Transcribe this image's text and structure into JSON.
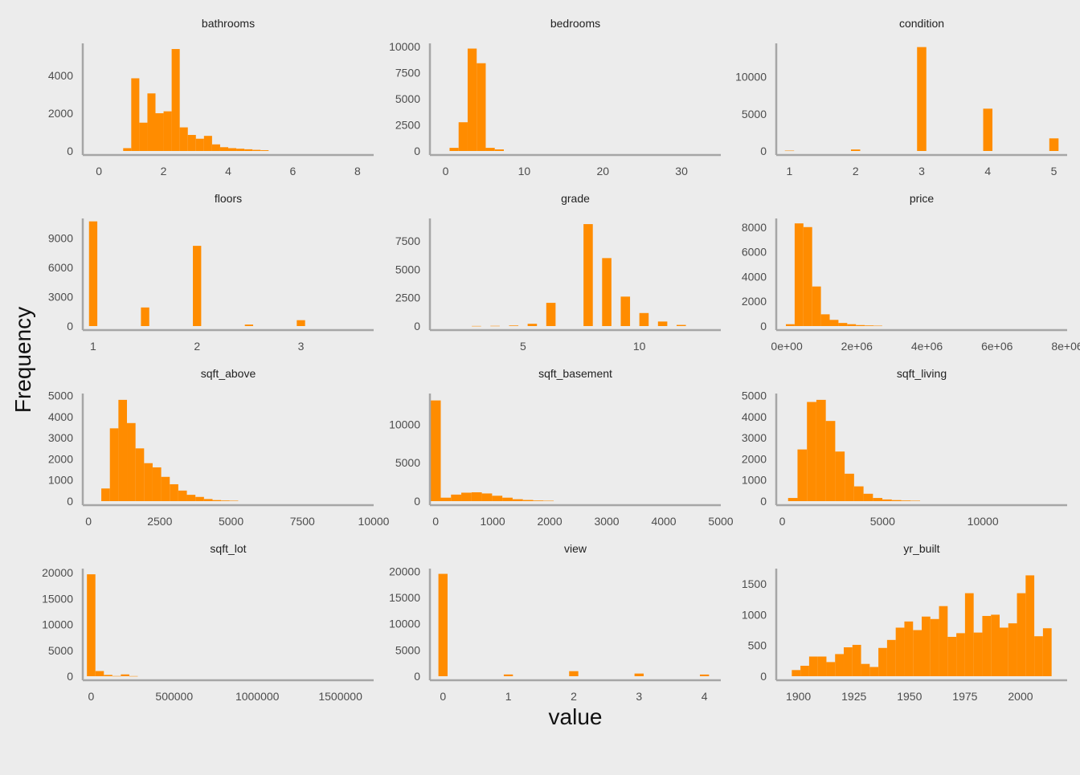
{
  "figure": {
    "xlabel": "value",
    "ylabel": "Frequency",
    "bar_color": "#ff8c00",
    "axis_color": "#a6a6a6",
    "text_color": "#4d4d4d",
    "background": "#ececec"
  },
  "chart_data": [
    {
      "type": "bar",
      "title": "bathrooms",
      "xlim": [
        -0.5,
        8.5
      ],
      "ylim": [
        0,
        5700
      ],
      "xticks": [
        0,
        2,
        4,
        6,
        8
      ],
      "yticks": [
        0,
        2000,
        4000
      ],
      "bin_start": 0.75,
      "bin_width": 0.25,
      "values": [
        150,
        3850,
        1500,
        3050,
        2000,
        2100,
        5400,
        1250,
        850,
        650,
        800,
        350,
        200,
        150,
        120,
        90,
        60,
        40
      ]
    },
    {
      "type": "bar",
      "title": "bedrooms",
      "xlim": [
        -2,
        35
      ],
      "ylim": [
        0,
        10300
      ],
      "xticks": [
        0,
        10,
        20,
        30
      ],
      "yticks": [
        0,
        2500,
        5000,
        7500,
        10000
      ],
      "bin_start": 0.5,
      "bin_width": 1.15,
      "values": [
        300,
        2750,
        9800,
        8400,
        300,
        150
      ]
    },
    {
      "type": "bar",
      "title": "condition",
      "xlim": [
        0.8,
        5.2
      ],
      "ylim": [
        0,
        14500
      ],
      "xticks": [
        1,
        2,
        3,
        4,
        5
      ],
      "yticks": [
        0,
        5000,
        10000
      ],
      "bin_start": 0.93,
      "bin_width": 0.14,
      "bin_step": 1,
      "values": [
        50,
        200,
        14000,
        5700,
        1700
      ]
    },
    {
      "type": "bar",
      "title": "floors",
      "xlim": [
        0.9,
        3.7
      ],
      "ylim": [
        0,
        11000
      ],
      "xticks": [
        1,
        2,
        3
      ],
      "yticks": [
        0,
        3000,
        6000,
        9000
      ],
      "bin_start": 0.96,
      "bin_width": 0.08,
      "bin_step": 0.5,
      "values": [
        10700,
        1900,
        8200,
        150,
        600
      ]
    },
    {
      "type": "bar",
      "title": "grade",
      "xlim": [
        1,
        13.5
      ],
      "ylim": [
        0,
        9500
      ],
      "xticks": [
        5,
        10
      ],
      "yticks": [
        0,
        2500,
        5000,
        7500
      ],
      "bin_start": 2.8,
      "bin_width": 0.4,
      "bin_step": 0.8,
      "values": [
        10,
        20,
        50,
        200,
        2050,
        0,
        9000,
        6000,
        2600,
        1150,
        400,
        100
      ]
    },
    {
      "type": "bar",
      "title": "price",
      "xlim": [
        -300000,
        8000000
      ],
      "ylim": [
        0,
        8700
      ],
      "xticks": [
        0,
        2000000,
        4000000,
        6000000,
        8000000
      ],
      "xtick_labels": [
        "0e+00",
        "2e+06",
        "4e+06",
        "6e+06",
        "8e+06"
      ],
      "yticks": [
        0,
        2000,
        4000,
        6000,
        8000
      ],
      "bin_start": -25000,
      "bin_width": 250000,
      "values": [
        150,
        8300,
        8000,
        3200,
        950,
        500,
        250,
        150,
        80,
        50,
        30
      ]
    },
    {
      "type": "bar",
      "title": "sqft_above",
      "xlim": [
        -200,
        10000
      ],
      "ylim": [
        0,
        5100
      ],
      "xticks": [
        0,
        2500,
        5000,
        7500,
        10000
      ],
      "yticks": [
        0,
        1000,
        2000,
        3000,
        4000,
        5000
      ],
      "bin_start": 450,
      "bin_width": 300,
      "values": [
        600,
        3450,
        4800,
        3700,
        2500,
        1800,
        1600,
        1150,
        800,
        500,
        300,
        200,
        100,
        50,
        30,
        20
      ]
    },
    {
      "type": "bar",
      "title": "sqft_basement",
      "xlim": [
        -100,
        5000
      ],
      "ylim": [
        0,
        14000
      ],
      "xticks": [
        0,
        1000,
        2000,
        3000,
        4000,
        5000
      ],
      "yticks": [
        0,
        5000,
        10000
      ],
      "bin_start": -90,
      "bin_width": 180,
      "values": [
        13100,
        450,
        850,
        1100,
        1150,
        1000,
        700,
        450,
        250,
        150,
        80,
        50
      ]
    },
    {
      "type": "bar",
      "title": "sqft_living",
      "xlim": [
        -300,
        14200
      ],
      "ylim": [
        0,
        5100
      ],
      "xticks": [
        0,
        5000,
        10000
      ],
      "yticks": [
        0,
        1000,
        2000,
        3000,
        4000,
        5000
      ],
      "bin_start": 290,
      "bin_width": 470,
      "values": [
        150,
        2450,
        4700,
        4800,
        3800,
        2350,
        1300,
        700,
        350,
        150,
        80,
        50,
        30,
        20
      ]
    },
    {
      "type": "bar",
      "title": "sqft_lot",
      "xlim": [
        -50000,
        1700000
      ],
      "ylim": [
        0,
        20800
      ],
      "xticks": [
        0,
        500000,
        1000000,
        1500000
      ],
      "yticks": [
        0,
        5000,
        10000,
        15000,
        20000
      ],
      "bin_start": -25000,
      "bin_width": 51000,
      "values": [
        19700,
        1000,
        250,
        40,
        350,
        30
      ]
    },
    {
      "type": "bar",
      "title": "view",
      "xlim": [
        -0.2,
        4.25
      ],
      "ylim": [
        0,
        20500
      ],
      "xticks": [
        0,
        1,
        2,
        3,
        4
      ],
      "yticks": [
        0,
        5000,
        10000,
        15000,
        20000
      ],
      "bin_start": -0.07,
      "bin_width": 0.14,
      "bin_step": 1,
      "values": [
        19500,
        330,
        960,
        510,
        320
      ]
    },
    {
      "type": "bar",
      "title": "yr_built",
      "xlim": [
        1890,
        2021
      ],
      "ylim": [
        0,
        1750
      ],
      "xticks": [
        1900,
        1925,
        1950,
        1975,
        2000
      ],
      "yticks": [
        0,
        500,
        1000,
        1500
      ],
      "bin_start": 1897,
      "bin_width": 3.9,
      "values": [
        100,
        170,
        320,
        320,
        230,
        360,
        470,
        510,
        200,
        150,
        460,
        590,
        790,
        890,
        750,
        970,
        930,
        1140,
        640,
        700,
        1350,
        710,
        980,
        1000,
        790,
        860,
        1350,
        1640,
        650,
        780
      ]
    }
  ]
}
